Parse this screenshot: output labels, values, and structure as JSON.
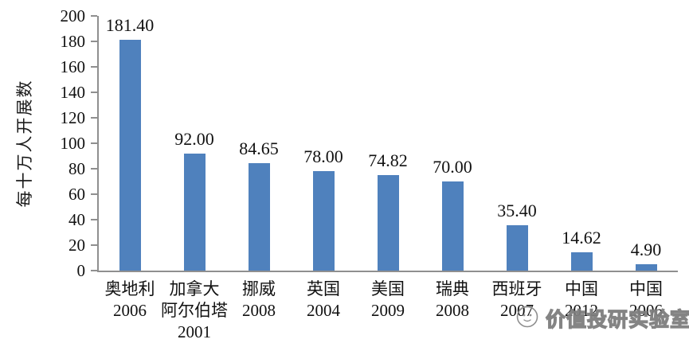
{
  "chart_data": {
    "type": "bar",
    "title": "",
    "xlabel": "",
    "ylabel": "每十万人开展数",
    "ylim": [
      0,
      200
    ],
    "yticks": [
      0,
      20,
      40,
      60,
      80,
      100,
      120,
      140,
      160,
      180,
      200
    ],
    "grid": false,
    "legend": "none",
    "bar_color": "#4f81bd",
    "axis_color": "#8f8f8f",
    "categories": [
      "奥地利\n2006",
      "加拿大\n阿尔伯塔\n2001",
      "挪威\n2008",
      "英国\n2004",
      "美国\n2009",
      "瑞典\n2008",
      "西班牙\n2007",
      "中国\n2012",
      "中国\n2006"
    ],
    "values": [
      181.4,
      92.0,
      84.65,
      78.0,
      74.82,
      70.0,
      35.4,
      14.62,
      4.9
    ],
    "value_labels": [
      "181.40",
      "92.00",
      "84.65",
      "78.00",
      "74.82",
      "70.00",
      "35.40",
      "14.62",
      "4.90"
    ]
  },
  "watermark": {
    "text": "价值投研实验室",
    "logo": "wechat-account-face-logo"
  }
}
